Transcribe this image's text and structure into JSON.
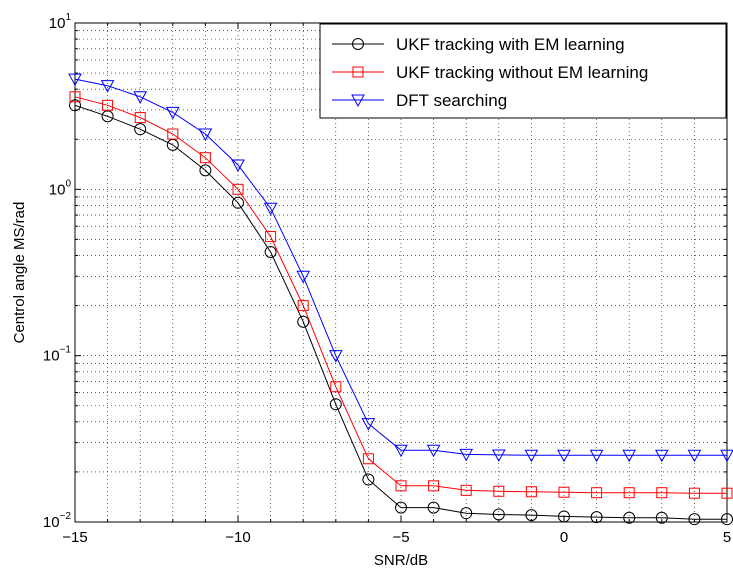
{
  "chart_data": {
    "type": "line",
    "xlabel": "SNR/dB",
    "ylabel": "Centrol angle MS/rad",
    "xlim": [
      -15,
      5
    ],
    "ylim": [
      0.01,
      10
    ],
    "yscale": "log",
    "grid": true,
    "legend_position": "top-right",
    "x_ticks": [
      -15,
      -10,
      -5,
      0,
      5
    ],
    "x_tick_labels": [
      "−15",
      "−10",
      "−5",
      "0",
      "5"
    ],
    "y_ticks": [
      {
        "value": 10,
        "base": "10",
        "exp": "1"
      },
      {
        "value": 1,
        "base": "10",
        "exp": "0"
      },
      {
        "value": 0.1,
        "base": "10",
        "exp": "−1"
      },
      {
        "value": 0.01,
        "base": "10",
        "exp": "−2"
      }
    ],
    "x": [
      -15,
      -14,
      -13,
      -12,
      -11,
      -10,
      -9,
      -8,
      -7,
      -6,
      -5,
      -4,
      -3,
      -2,
      -1,
      0,
      1,
      2,
      3,
      4,
      5
    ],
    "series": [
      {
        "name": "UKF tracking with EM learning",
        "color": "#000000",
        "marker": "circle",
        "values": [
          3.2,
          2.75,
          2.3,
          1.85,
          1.3,
          0.83,
          0.42,
          0.16,
          0.051,
          0.018,
          0.0122,
          0.0122,
          0.0113,
          0.0111,
          0.011,
          0.0108,
          0.0107,
          0.0106,
          0.0106,
          0.0104,
          0.0104
        ]
      },
      {
        "name": "UKF tracking without EM learning",
        "color": "#ff0000",
        "marker": "square",
        "values": [
          3.6,
          3.2,
          2.7,
          2.15,
          1.55,
          1.0,
          0.52,
          0.2,
          0.065,
          0.024,
          0.0165,
          0.0165,
          0.0155,
          0.0153,
          0.0152,
          0.0151,
          0.015,
          0.015,
          0.015,
          0.0149,
          0.0149
        ]
      },
      {
        "name": "DFT searching",
        "color": "#0000ff",
        "marker": "triangle-down",
        "values": [
          4.6,
          4.2,
          3.6,
          2.9,
          2.15,
          1.4,
          0.77,
          0.3,
          0.1,
          0.039,
          0.027,
          0.027,
          0.0255,
          0.0253,
          0.0252,
          0.0252,
          0.0252,
          0.0252,
          0.0252,
          0.0252,
          0.0252
        ]
      }
    ]
  }
}
